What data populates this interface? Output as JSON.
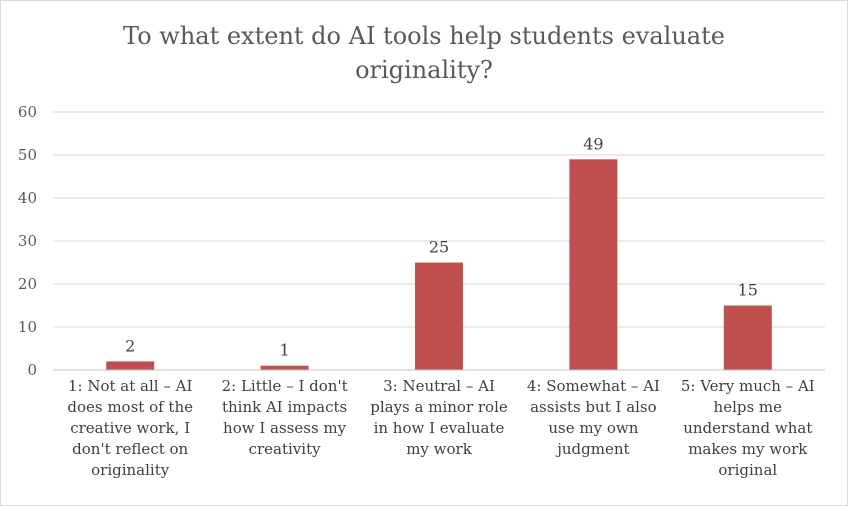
{
  "chart_data": {
    "type": "bar",
    "title_lines": [
      "To what extent do AI tools help students evaluate",
      "originality?"
    ],
    "categories": [
      "1: Not at all – AI does most of the creative work, I don't reflect on originality",
      "2: Little – I don't think AI impacts how I assess my creativity",
      "3: Neutral – AI plays a minor role in how I evaluate my work",
      "4: Somewhat – AI assists but I also use my own judgment",
      "5: Very much – AI helps me understand what makes my work original"
    ],
    "category_label_lines": [
      [
        "1: Not at all – AI",
        "does most of the",
        "creative work, I",
        "don't reflect on",
        "originality"
      ],
      [
        "2: Little – I don't",
        "think AI impacts",
        "how I assess my",
        "creativity"
      ],
      [
        "3: Neutral – AI",
        "plays a minor role",
        "in how I evaluate",
        "my work"
      ],
      [
        "4: Somewhat – AI",
        "assists but I also",
        "use my own",
        "judgment"
      ],
      [
        "5: Very much – AI",
        "helps me",
        "understand what",
        "makes my work",
        "original"
      ]
    ],
    "values": [
      2,
      1,
      25,
      49,
      15
    ],
    "data_labels": [
      "2",
      "1",
      "25",
      "49",
      "15"
    ],
    "ylim": [
      0,
      60
    ],
    "yticks": [
      0,
      10,
      20,
      30,
      40,
      50,
      60
    ],
    "grid": true,
    "legend": "none",
    "bar_color": "#c0504d",
    "grid_color": "#d9d9d9",
    "axis_color": "#bfbfbf"
  }
}
